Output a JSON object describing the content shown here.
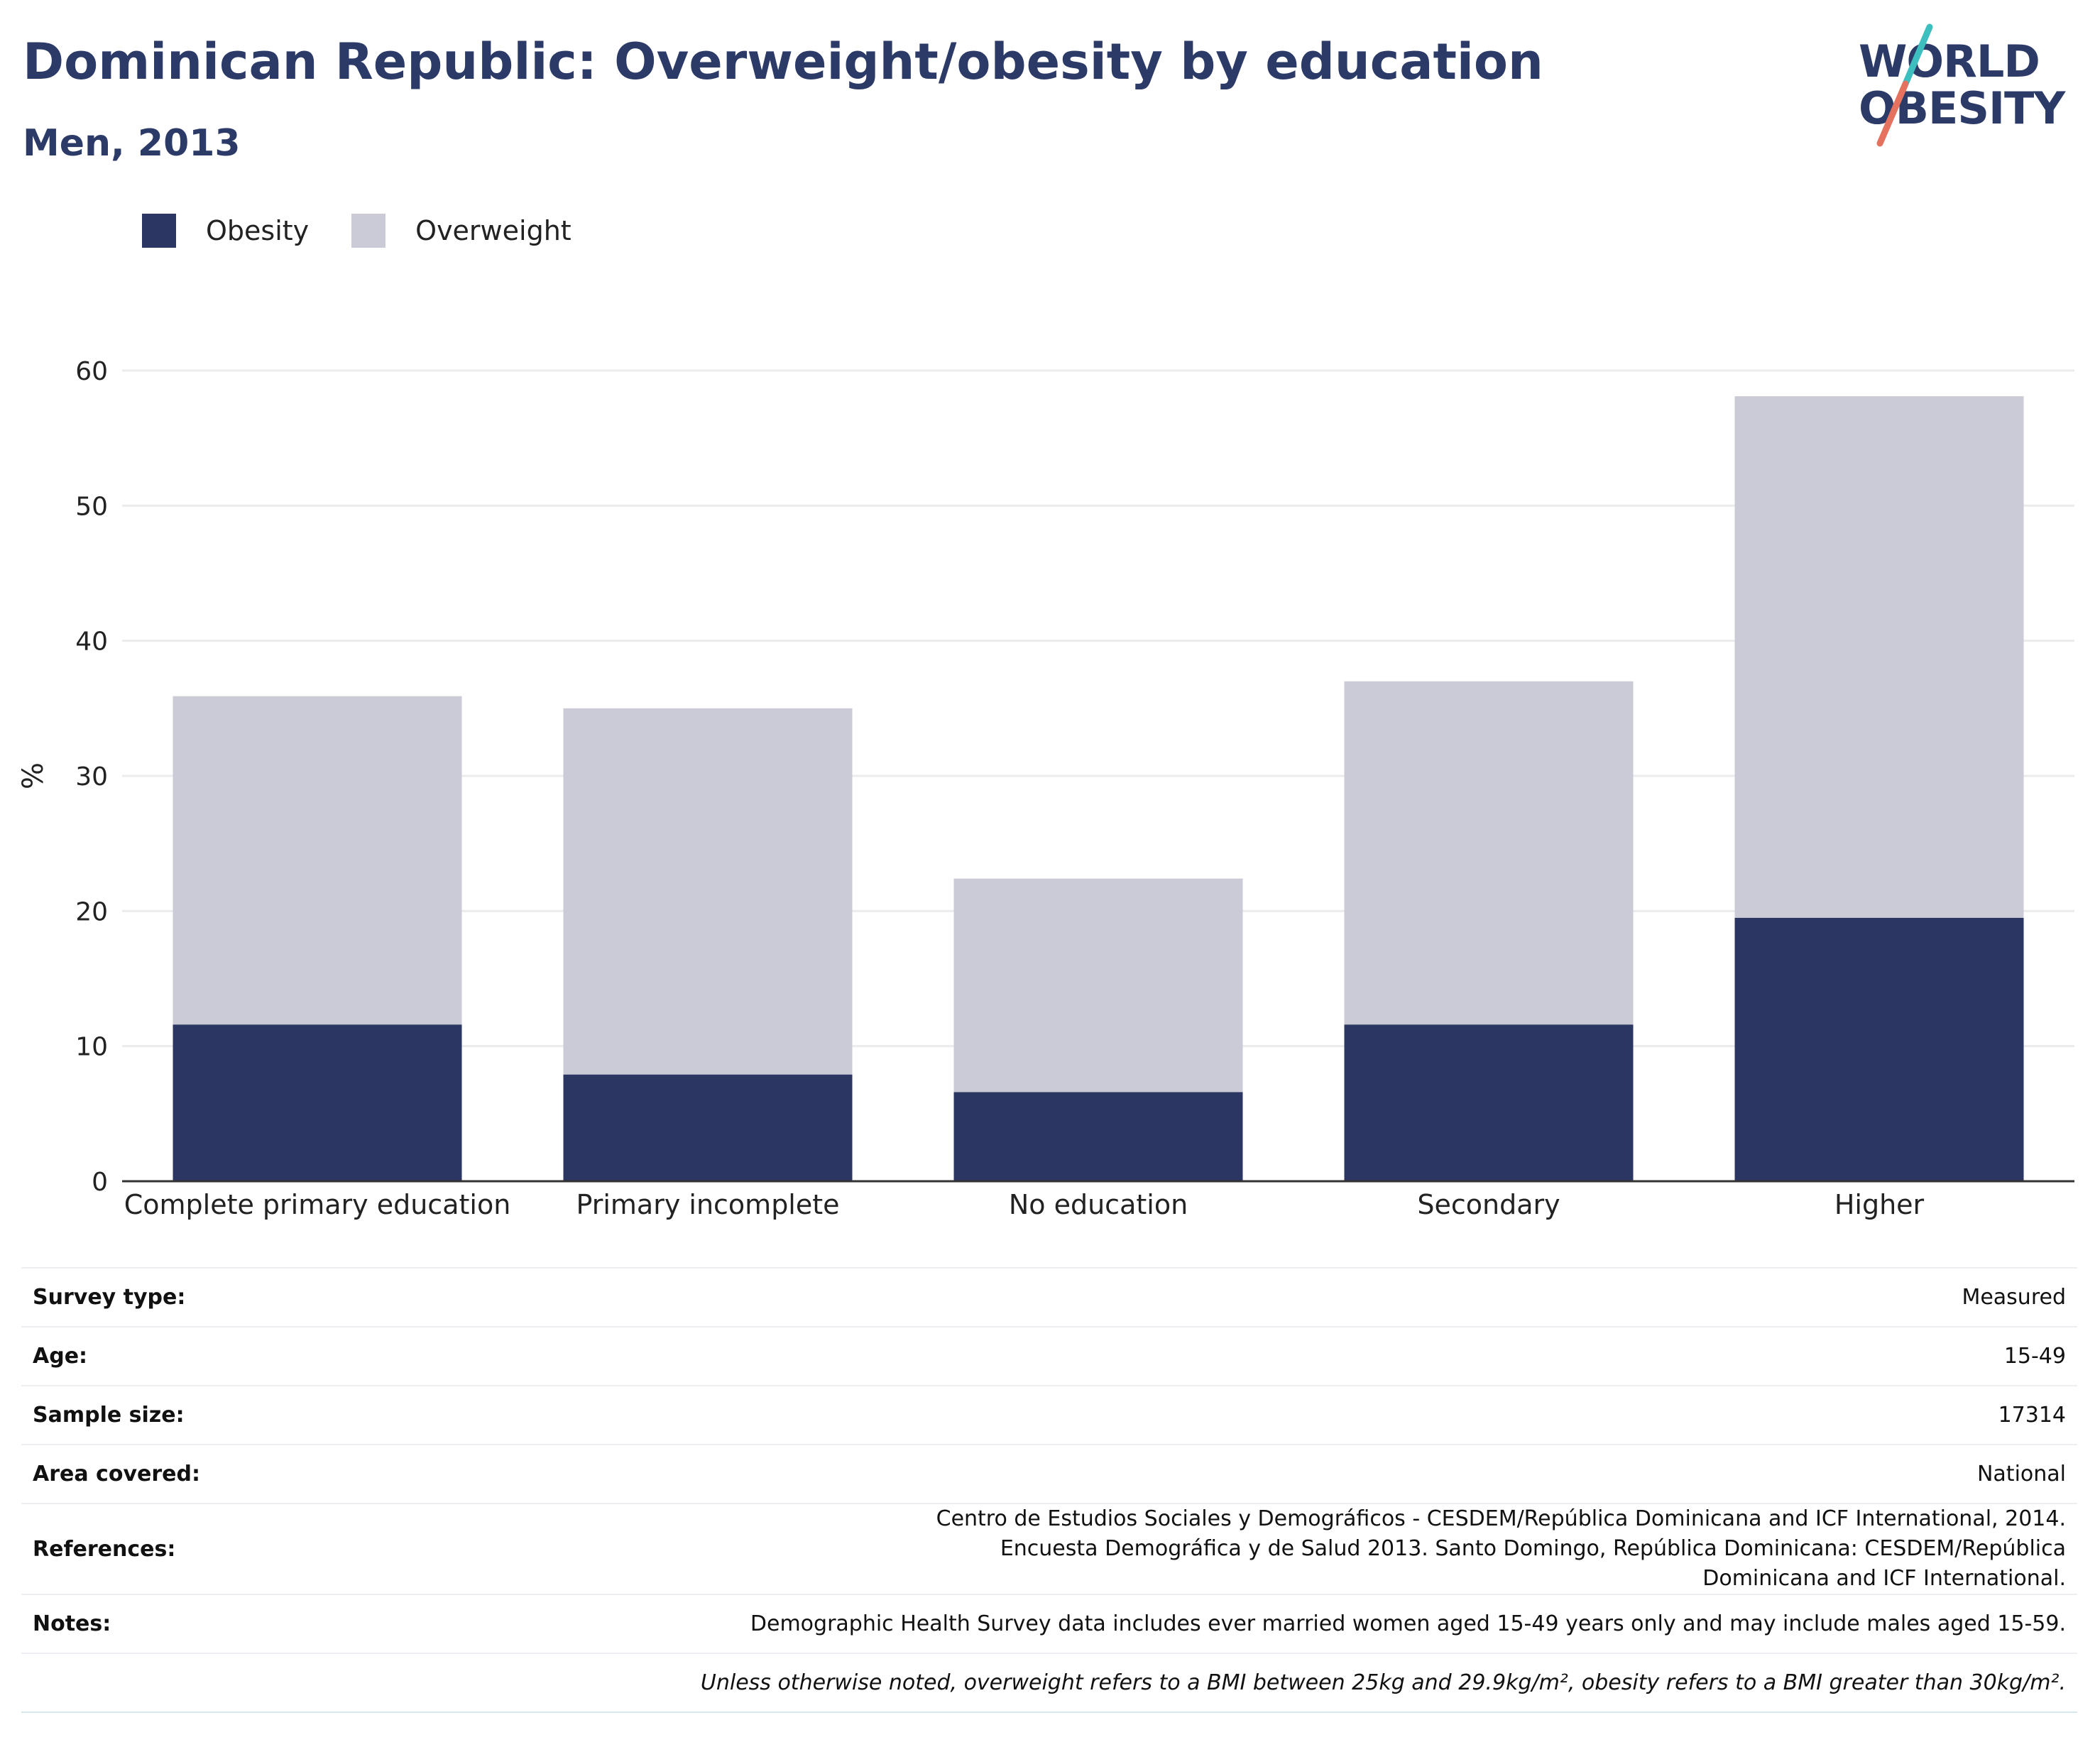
{
  "header": {
    "title": "Dominican Republic: Overweight/obesity by education",
    "subtitle": "Men, 2013"
  },
  "logo": {
    "line1": "WORLD",
    "line2": "OBESITY"
  },
  "colors": {
    "obesity": "#2b3663",
    "overweight": "#cacbd6",
    "title": "#2b3a67",
    "logo_teal": "#3dbfc0",
    "logo_coral": "#e5715f",
    "grid": "#ebebee",
    "axis": "#333333"
  },
  "chart_data": {
    "type": "bar",
    "stacked": true,
    "categories": [
      "Complete primary education",
      "Primary incomplete",
      "No education",
      "Secondary",
      "Higher"
    ],
    "series": [
      {
        "name": "Obesity",
        "values": [
          11.6,
          7.9,
          6.6,
          11.6,
          19.5
        ]
      },
      {
        "name": "Overweight",
        "values": [
          24.3,
          27.1,
          15.8,
          25.4,
          38.6
        ]
      }
    ],
    "ylabel": "%",
    "ylim": [
      0,
      60
    ],
    "yticks": [
      0,
      10,
      20,
      30,
      40,
      50,
      60
    ],
    "grid": true,
    "legend_position": "top-left"
  },
  "info": [
    {
      "key": "Survey type:",
      "value": "Measured"
    },
    {
      "key": "Age:",
      "value": "15-49"
    },
    {
      "key": "Sample size:",
      "value": "17314"
    },
    {
      "key": "Area covered:",
      "value": "National"
    },
    {
      "key": "References:",
      "value": "Centro de Estudios Sociales y Demográficos - CESDEM/República Dominicana and ICF International, 2014. Encuesta Demográfica y de Salud 2013. Santo Domingo, República Dominicana: CESDEM/República Dominicana and ICF International."
    },
    {
      "key": "Notes:",
      "value": "Demographic Health Survey data includes ever married women aged 15-49 years only and may include males aged 15-59."
    },
    {
      "key": "",
      "value": "Unless otherwise noted, overweight refers to a BMI between 25kg and 29.9kg/m², obesity refers to a BMI greater than 30kg/m²."
    }
  ]
}
